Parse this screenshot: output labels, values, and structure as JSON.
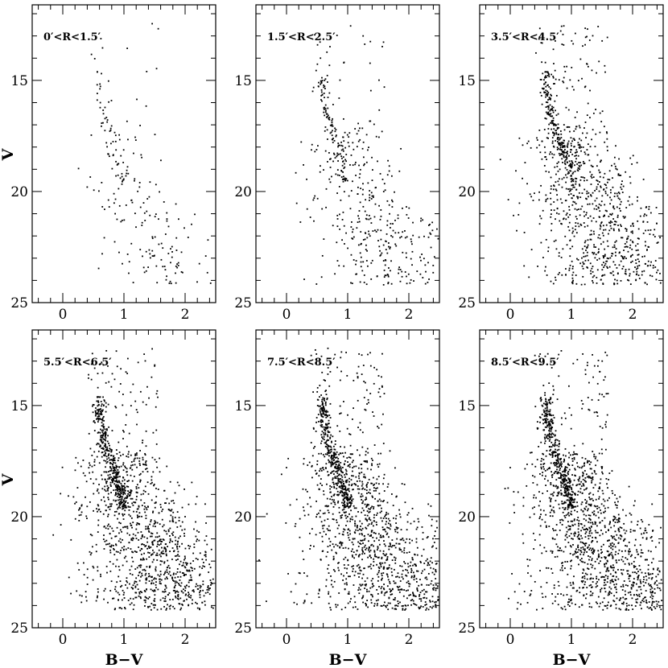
{
  "figure": {
    "xlabel": "B−V",
    "ylabel": "V"
  },
  "chart_data": [
    {
      "type": "scatter",
      "label": "0′<R<1.5′",
      "xlim": [
        -0.5,
        2.5
      ],
      "ylim": [
        25,
        11.6
      ],
      "xticks": [
        0,
        1,
        2
      ],
      "yticks": [
        15,
        20,
        25
      ],
      "density": 220,
      "spread": 0.7
    },
    {
      "type": "scatter",
      "label": "1.5′<R<2.5′",
      "xlim": [
        -0.5,
        2.5
      ],
      "ylim": [
        25,
        11.6
      ],
      "xticks": [
        0,
        1,
        2
      ],
      "yticks": [
        15,
        20,
        25
      ],
      "density": 520,
      "spread": 0.9
    },
    {
      "type": "scatter",
      "label": "3.5′<R<4.5′",
      "xlim": [
        -0.5,
        2.5
      ],
      "ylim": [
        25,
        11.6
      ],
      "xticks": [
        0,
        1,
        2
      ],
      "yticks": [
        15,
        20,
        25
      ],
      "density": 1150,
      "spread": 1.0
    },
    {
      "type": "scatter",
      "label": "5.5′<R<6.5′",
      "xlim": [
        -0.5,
        2.5
      ],
      "ylim": [
        25,
        11.6
      ],
      "xticks": [
        0,
        1,
        2
      ],
      "yticks": [
        15,
        20,
        25
      ],
      "density": 1600,
      "spread": 1.0
    },
    {
      "type": "scatter",
      "label": "7.5′<R<8.5′",
      "xlim": [
        -0.5,
        2.5
      ],
      "ylim": [
        25,
        11.6
      ],
      "xticks": [
        0,
        1,
        2
      ],
      "yticks": [
        15,
        20,
        25
      ],
      "density": 1650,
      "spread": 1.05
    },
    {
      "type": "scatter",
      "label": "8.5′<R<9.5′",
      "xlim": [
        -0.5,
        2.5
      ],
      "ylim": [
        25,
        11.6
      ],
      "xticks": [
        0,
        1,
        2
      ],
      "yticks": [
        15,
        20,
        25
      ],
      "density": 1700,
      "spread": 1.05
    }
  ],
  "sequence_ridge": {
    "description_points": [
      {
        "v": 14.6,
        "bv": 0.6
      },
      {
        "v": 15.5,
        "bv": 0.6
      },
      {
        "v": 16.5,
        "bv": 0.66
      },
      {
        "v": 17.5,
        "bv": 0.78
      },
      {
        "v": 18.5,
        "bv": 0.9
      },
      {
        "v": 19.5,
        "bv": 1.0
      },
      {
        "v": 20.5,
        "bv": 1.15
      },
      {
        "v": 21.5,
        "bv": 1.35
      },
      {
        "v": 22.5,
        "bv": 1.55
      },
      {
        "v": 23.5,
        "bv": 1.65
      }
    ]
  }
}
